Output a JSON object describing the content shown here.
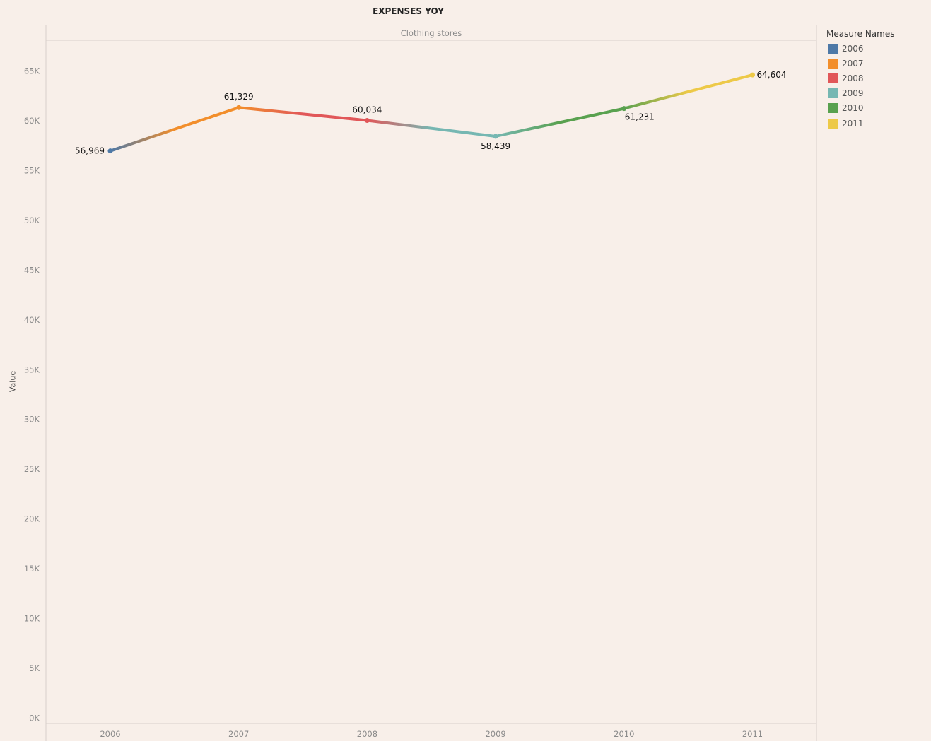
{
  "chart_data": {
    "type": "line",
    "title": "EXPENSES YOY",
    "pane_header": "Clothing stores",
    "xlabel": "",
    "ylabel": "Value",
    "categories": [
      "2006",
      "2007",
      "2008",
      "2009",
      "2010",
      "2011"
    ],
    "values": [
      56969,
      61329,
      60034,
      58439,
      61231,
      64604
    ],
    "data_labels": [
      "56,969",
      "61,329",
      "60,034",
      "58,439",
      "61,231",
      "64,604"
    ],
    "colors": [
      "#4e79a7",
      "#f28e2b",
      "#e15759",
      "#76b7b2",
      "#59a14f",
      "#edc948"
    ],
    "ylim": [
      0,
      68000
    ],
    "yticks": [
      0,
      5000,
      10000,
      15000,
      20000,
      25000,
      30000,
      35000,
      40000,
      45000,
      50000,
      55000,
      60000,
      65000
    ],
    "ytick_labels": [
      "0K",
      "5K",
      "10K",
      "15K",
      "20K",
      "25K",
      "30K",
      "35K",
      "40K",
      "45K",
      "50K",
      "55K",
      "60K",
      "65K"
    ],
    "grid": false,
    "legend": {
      "title": "Measure Names",
      "placement": "right",
      "items": [
        "2006",
        "2007",
        "2008",
        "2009",
        "2010",
        "2011"
      ]
    }
  }
}
